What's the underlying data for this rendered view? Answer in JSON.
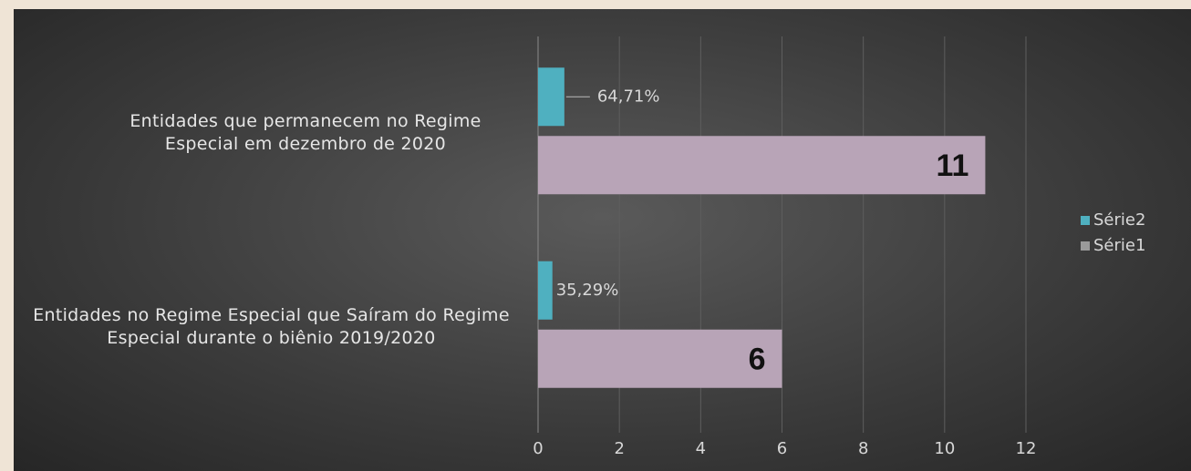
{
  "chart_data": {
    "type": "hbar",
    "categories": [
      "Entidades que permanecem no Regime Especial em dezembro de 2020",
      "Entidades no Regime Especial que Saíram do Regime Especial durante o biênio 2019/2020"
    ],
    "series": [
      {
        "name": "Série2",
        "color": "#4fb0c0",
        "values": [
          0.6471,
          0.3529
        ],
        "value_labels": [
          "64,71%",
          "35,29%"
        ]
      },
      {
        "name": "Série1",
        "color": "#b8a4b7",
        "values": [
          11,
          6
        ]
      }
    ],
    "xlim": [
      0,
      12
    ],
    "xticks": [
      0,
      2,
      4,
      6,
      8,
      10,
      12
    ],
    "grid": true,
    "legend": "right"
  }
}
